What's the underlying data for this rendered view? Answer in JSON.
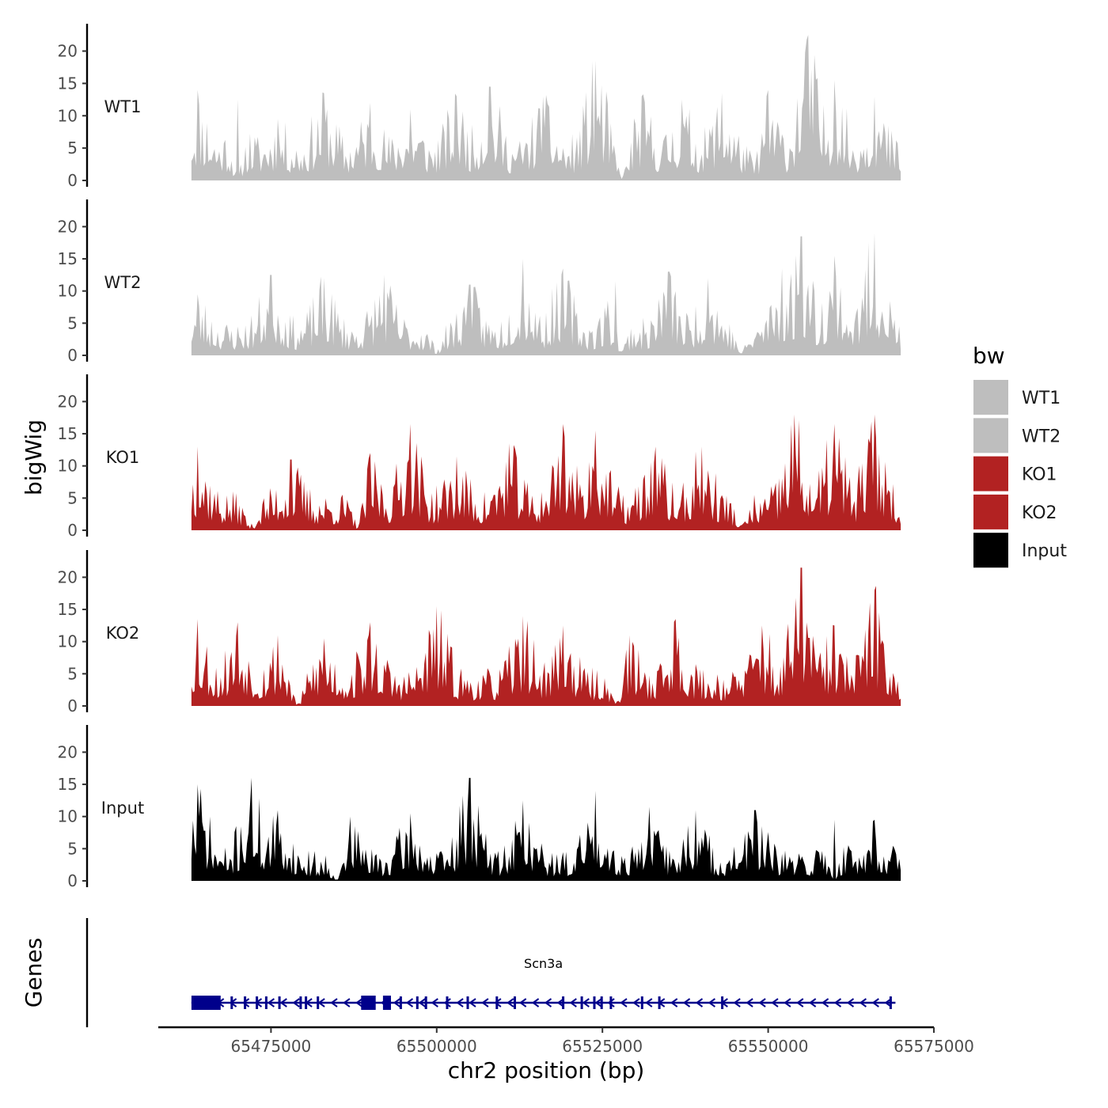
{
  "chart_data": {
    "type": "area",
    "title": "",
    "ylabel": "bigWig",
    "xlabel": "chr2 position (bp)",
    "xlim": [
      65458000,
      65575000
    ],
    "data_range": [
      65463000,
      65570000
    ],
    "ylim": [
      0,
      23
    ],
    "yticks": [
      "0",
      "5",
      "10",
      "15",
      "20"
    ],
    "xticks": [
      {
        "value": 65475000,
        "label": "65475000"
      },
      {
        "value": 65500000,
        "label": "65500000"
      },
      {
        "value": 65525000,
        "label": "65525000"
      },
      {
        "value": 65550000,
        "label": "65550000"
      },
      {
        "value": 65575000,
        "label": "65575000"
      }
    ],
    "legend": {
      "title": "bw",
      "position": "right"
    },
    "series": [
      {
        "name": "WT1",
        "color": "#bebebe",
        "seed": 11,
        "base": 6.0,
        "peaks": [
          [
            65464000,
            14.0
          ],
          [
            65470000,
            12.5
          ],
          [
            65476000,
            9.5
          ],
          [
            65483000,
            13.5
          ],
          [
            65490000,
            12.0
          ],
          [
            65496000,
            11.0
          ],
          [
            65503000,
            13.0
          ],
          [
            65508000,
            14.5
          ],
          [
            65516000,
            13.0
          ],
          [
            65524000,
            18.5
          ],
          [
            65531000,
            13.0
          ],
          [
            65537000,
            12.5
          ],
          [
            65543000,
            13.5
          ],
          [
            65550000,
            14.0
          ],
          [
            65556000,
            22.5
          ],
          [
            65560000,
            15.5
          ],
          [
            65566000,
            13.0
          ]
        ],
        "dips": [
          [
            65470000,
            0.5
          ],
          [
            65528000,
            1.2
          ],
          [
            65548000,
            2.5
          ]
        ]
      },
      {
        "name": "WT2",
        "color": "#bebebe",
        "seed": 23,
        "base": 5.2,
        "peaks": [
          [
            65464000,
            9.5
          ],
          [
            65475000,
            12.5
          ],
          [
            65483000,
            12.0
          ],
          [
            65492000,
            12.5
          ],
          [
            65505000,
            11.0
          ],
          [
            65513000,
            15.0
          ],
          [
            65519000,
            13.5
          ],
          [
            65527000,
            11.5
          ],
          [
            65535000,
            13.0
          ],
          [
            65541000,
            12.0
          ],
          [
            65552000,
            13.5
          ],
          [
            65555000,
            18.5
          ],
          [
            65560000,
            15.5
          ],
          [
            65566000,
            19.0
          ]
        ],
        "dips": [
          [
            65500000,
            1.5
          ],
          [
            65528000,
            0.8
          ],
          [
            65546000,
            1.0
          ]
        ]
      },
      {
        "name": "KO1",
        "color": "#b22222",
        "seed": 37,
        "base": 5.8,
        "peaks": [
          [
            65464000,
            13.0
          ],
          [
            65478000,
            11.0
          ],
          [
            65490000,
            12.0
          ],
          [
            65496000,
            16.5
          ],
          [
            65503000,
            11.5
          ],
          [
            65511000,
            13.5
          ],
          [
            65519000,
            16.5
          ],
          [
            65524000,
            15.5
          ],
          [
            65533000,
            13.0
          ],
          [
            65540000,
            13.0
          ],
          [
            65554000,
            18.0
          ],
          [
            65560000,
            16.5
          ],
          [
            65566000,
            18.0
          ]
        ],
        "dips": [
          [
            65472000,
            1.0
          ],
          [
            65488000,
            1.0
          ],
          [
            65546000,
            1.0
          ]
        ]
      },
      {
        "name": "KO2",
        "color": "#b22222",
        "seed": 53,
        "base": 5.6,
        "peaks": [
          [
            65464000,
            13.5
          ],
          [
            65470000,
            13.0
          ],
          [
            65476000,
            11.0
          ],
          [
            65483000,
            10.5
          ],
          [
            65490000,
            13.0
          ],
          [
            65500000,
            15.5
          ],
          [
            65513000,
            14.0
          ],
          [
            65519000,
            12.5
          ],
          [
            65529000,
            11.0
          ],
          [
            65536000,
            13.5
          ],
          [
            65549000,
            12.5
          ],
          [
            65555000,
            21.5
          ],
          [
            65560000,
            12.5
          ],
          [
            65566000,
            18.0
          ]
        ],
        "dips": [
          [
            65479000,
            0.5
          ],
          [
            65527000,
            0.8
          ]
        ]
      },
      {
        "name": "Input",
        "color": "#000000",
        "seed": 71,
        "base": 4.5,
        "peaks": [
          [
            65464000,
            15.0
          ],
          [
            65472000,
            16.0
          ],
          [
            65476000,
            11.0
          ],
          [
            65487000,
            10.0
          ],
          [
            65496000,
            10.5
          ],
          [
            65505000,
            16.0
          ],
          [
            65513000,
            12.5
          ],
          [
            65524000,
            14.0
          ],
          [
            65532000,
            11.5
          ],
          [
            65539000,
            11.0
          ],
          [
            65548000,
            11.0
          ],
          [
            65560000,
            9.5
          ],
          [
            65566000,
            9.5
          ]
        ],
        "dips": [
          [
            65485000,
            0.5
          ],
          [
            65560000,
            0.5
          ]
        ]
      }
    ],
    "genes": {
      "track_label": "Genes",
      "name": "Scn3a",
      "color": "#00008b",
      "start": 65463000,
      "end": 65569200,
      "strand": "-",
      "exons": [
        [
          65463000,
          65467400
        ],
        [
          65468900,
          65469100
        ],
        [
          65470900,
          65471100
        ],
        [
          65472700,
          65472900
        ],
        [
          65474100,
          65474300
        ],
        [
          65476100,
          65476300
        ],
        [
          65479300,
          65479500
        ],
        [
          65480100,
          65480300
        ],
        [
          65481900,
          65482100
        ],
        [
          65488600,
          65490800
        ],
        [
          65491900,
          65493100
        ],
        [
          65494400,
          65494600
        ],
        [
          65496900,
          65497100
        ],
        [
          65498200,
          65498400
        ],
        [
          65501400,
          65501600
        ],
        [
          65504500,
          65504700
        ],
        [
          65508900,
          65509100
        ],
        [
          65511600,
          65511800
        ],
        [
          65518900,
          65519100
        ],
        [
          65521700,
          65521900
        ],
        [
          65523600,
          65523800
        ],
        [
          65524700,
          65524900
        ],
        [
          65526100,
          65526300
        ],
        [
          65530800,
          65531000
        ],
        [
          65533400,
          65533600
        ],
        [
          65542900,
          65543100
        ],
        [
          65568300,
          65568500
        ]
      ]
    }
  }
}
